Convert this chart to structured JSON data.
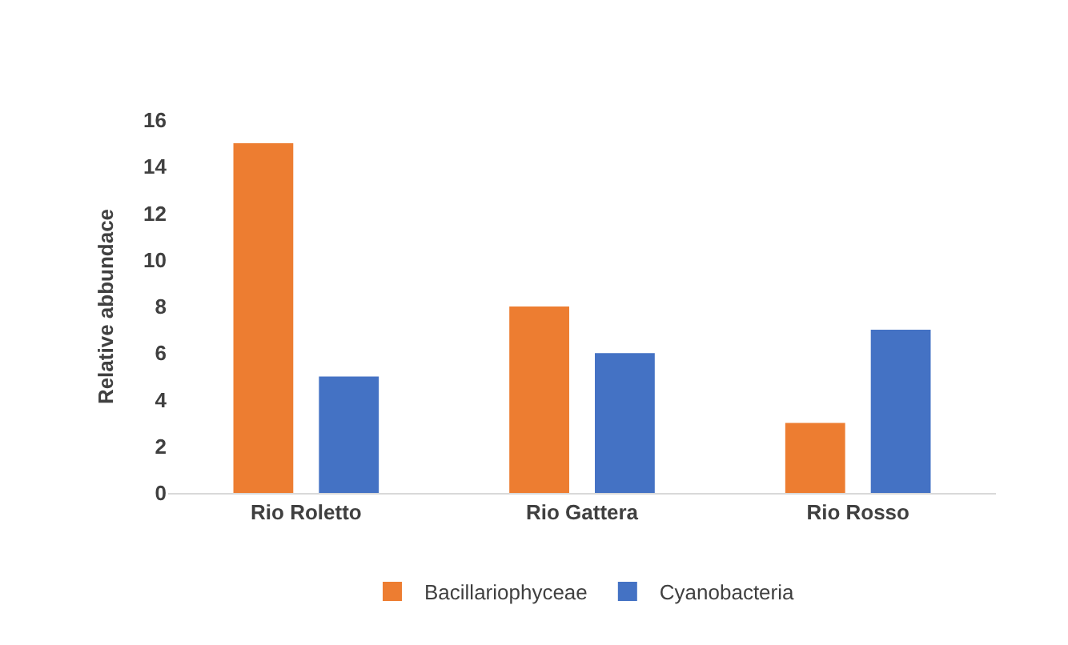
{
  "chart_data": {
    "type": "bar",
    "ylabel": "Relative abbundace",
    "categories": [
      "Rio Roletto",
      "Rio Gattera",
      "Rio Rosso"
    ],
    "series": [
      {
        "name": "Bacillariophyceae",
        "color": "#ed7d31",
        "values": [
          15,
          8,
          3
        ]
      },
      {
        "name": "Cyanobacteria",
        "color": "#4472c4",
        "values": [
          5,
          6,
          7
        ]
      }
    ],
    "ylim": [
      0,
      16
    ],
    "yticks": [
      0,
      2,
      4,
      6,
      8,
      10,
      12,
      14,
      16
    ],
    "grid": false,
    "legend": "bottom"
  }
}
